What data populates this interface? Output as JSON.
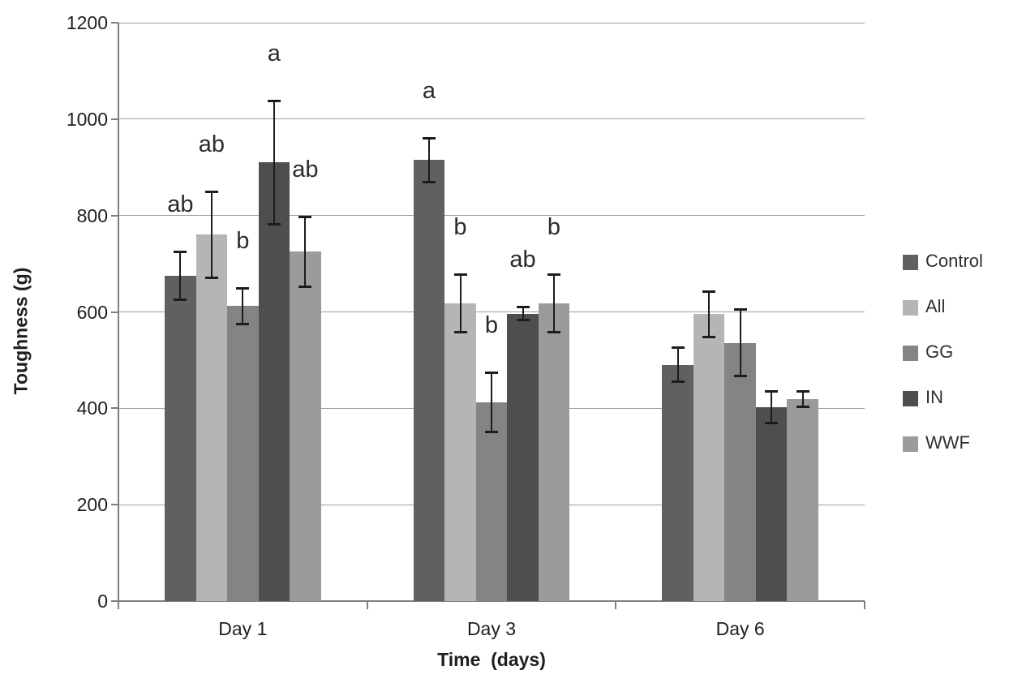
{
  "chart_data": {
    "type": "bar",
    "title": "",
    "ylabel": "Toughness (g)",
    "xlabel": "Time  (days)",
    "categories": [
      "Day 1",
      "Day 3",
      "Day 6"
    ],
    "ylim": [
      0,
      1200
    ],
    "ytick_step": 200,
    "yticks": [
      0,
      200,
      400,
      600,
      800,
      1000,
      1200
    ],
    "grid": true,
    "legend_position": "right",
    "error_bars": true,
    "series": [
      {
        "name": "Control",
        "color": "#606060",
        "values": [
          675,
          915,
          490
        ],
        "errors": [
          52,
          48,
          38
        ],
        "sig_letters": [
          "ab",
          "a",
          ""
        ]
      },
      {
        "name": "All",
        "color": "#b5b5b5",
        "values": [
          760,
          618,
          595
        ],
        "errors": [
          92,
          62,
          49
        ],
        "sig_letters": [
          "ab",
          "b",
          ""
        ]
      },
      {
        "name": "GG",
        "color": "#848484",
        "values": [
          612,
          412,
          536
        ],
        "errors": [
          40,
          64,
          72
        ],
        "sig_letters": [
          "b",
          "b",
          ""
        ]
      },
      {
        "name": "IN",
        "color": "#4e4e4e",
        "values": [
          910,
          596,
          402
        ],
        "errors": [
          130,
          16,
          35
        ],
        "sig_letters": [
          "a",
          "ab",
          ""
        ]
      },
      {
        "name": "WWF",
        "color": "#9b9b9b",
        "values": [
          725,
          618,
          419
        ],
        "errors": [
          75,
          62,
          18
        ],
        "sig_letters": [
          "ab",
          "b",
          ""
        ]
      }
    ]
  },
  "styles": {
    "gridline_color": "#9e9e9e",
    "axis_color": "#7f7f7f",
    "error_bar_color": "#1c1c1c",
    "text_color": "#1f1f1f",
    "background_color": "#ffffff"
  }
}
